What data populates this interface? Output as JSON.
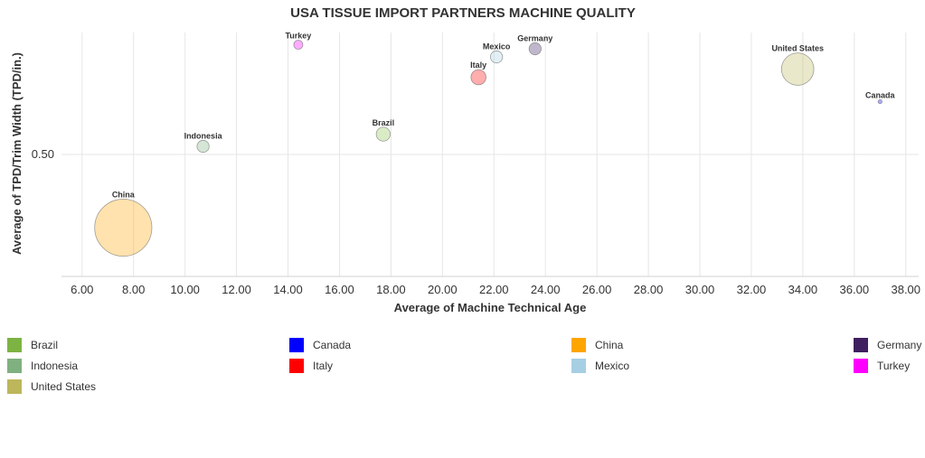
{
  "chart_data": {
    "type": "scatter",
    "title": "USA TISSUE IMPORT PARTNERS MACHINE QUALITY",
    "xlabel": "Average of Machine Technical Age",
    "ylabel": "Average of TPD/Trim Width (TPD/in.)",
    "xlim": [
      5.2,
      38.5
    ],
    "x_ticks": [
      "6.00",
      "8.00",
      "10.00",
      "12.00",
      "14.00",
      "16.00",
      "18.00",
      "20.00",
      "22.00",
      "24.00",
      "26.00",
      "28.00",
      "30.00",
      "32.00",
      "34.00",
      "36.00",
      "38.00"
    ],
    "y_ticks": [
      "0.50"
    ],
    "grid": true,
    "legend_position": "bottom",
    "series": [
      {
        "name": "Brazil",
        "color": "#8bc34a",
        "x": 17.7,
        "y": 0.55,
        "size": 0.6
      },
      {
        "name": "Canada",
        "color": "#0000ff",
        "x": 37.0,
        "y": 0.63,
        "size": 0.05
      },
      {
        "name": "China",
        "color": "#ffa500",
        "x": 7.6,
        "y": 0.32,
        "size": 10
      },
      {
        "name": "Germany",
        "color": "#3f1f5f",
        "x": 23.6,
        "y": 0.76,
        "size": 0.45
      },
      {
        "name": "Indonesia",
        "color": "#7fb07f",
        "x": 10.7,
        "y": 0.52,
        "size": 0.45
      },
      {
        "name": "Italy",
        "color": "#ff0000",
        "x": 21.4,
        "y": 0.69,
        "size": 0.7
      },
      {
        "name": "Mexico",
        "color": "#a6cfe3",
        "x": 22.1,
        "y": 0.74,
        "size": 0.45
      },
      {
        "name": "Turkey",
        "color": "#ff00ff",
        "x": 14.4,
        "y": 0.77,
        "size": 0.25
      },
      {
        "name": "United States",
        "color": "#bdb65a",
        "x": 33.8,
        "y": 0.71,
        "size": 3.2
      }
    ]
  },
  "legend": [
    {
      "label": "Brazil",
      "color": "#7cb342"
    },
    {
      "label": "Canada",
      "color": "#0000ff"
    },
    {
      "label": "China",
      "color": "#ffa500"
    },
    {
      "label": "Germany",
      "color": "#3f1f5f"
    },
    {
      "label": "Indonesia",
      "color": "#7fb07f"
    },
    {
      "label": "Italy",
      "color": "#ff0000"
    },
    {
      "label": "Mexico",
      "color": "#a6cfe3"
    },
    {
      "label": "Turkey",
      "color": "#ff00ff"
    },
    {
      "label": "United States",
      "color": "#bdb65a"
    }
  ]
}
